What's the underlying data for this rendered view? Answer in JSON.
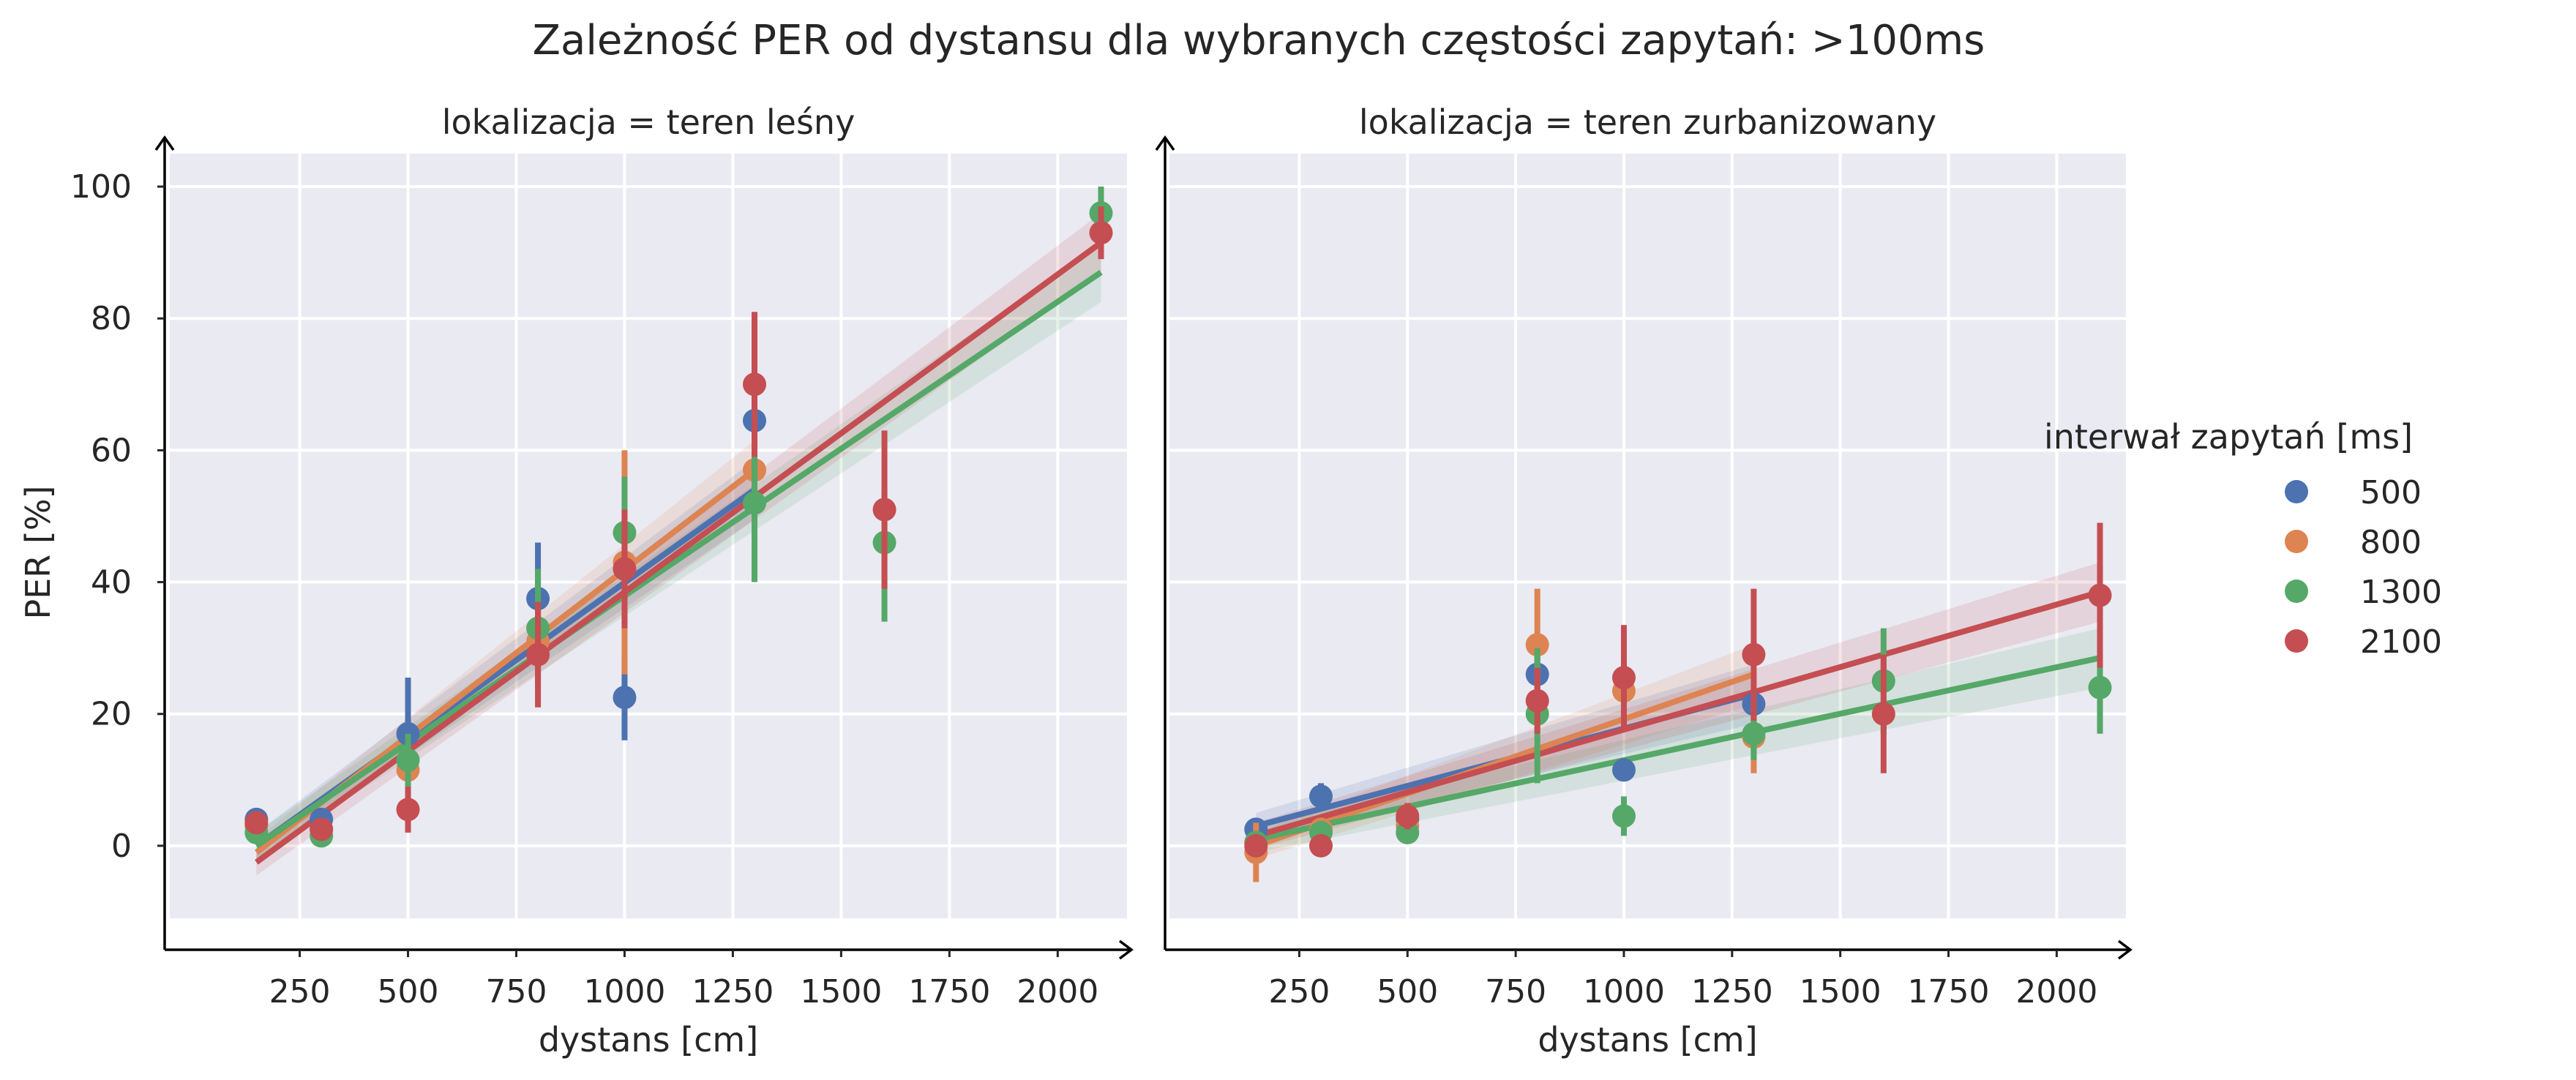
{
  "chart_data": {
    "type": "scatter",
    "title": "Zależność PER od dystansu dla wybranych częstości zapytań: >100ms",
    "xlabel": "dystans [cm]",
    "ylabel": "PER [%]",
    "xlim": [
      -50,
      2160
    ],
    "ylim": [
      -11,
      105
    ],
    "xticks": [
      250,
      500,
      750,
      1000,
      1250,
      1500,
      1750,
      2000
    ],
    "yticks": [
      0,
      20,
      40,
      60,
      80,
      100
    ],
    "grid": true,
    "legend": {
      "title": "interwał zapytań [ms]",
      "placement": "right",
      "entries": [
        "500",
        "800",
        "1300",
        "2100"
      ]
    },
    "colors": {
      "500": "#4c72b0",
      "800": "#dd8452",
      "1300": "#55a868",
      "2100": "#c44e52",
      "background": "#eaeaf2"
    },
    "panels": [
      {
        "title": "lokalizacja = teren leśny",
        "series": [
          {
            "name": "500",
            "points": [
              {
                "x": 150,
                "y": 4,
                "lo": 2.5,
                "hi": 5.5
              },
              {
                "x": 300,
                "y": 4,
                "lo": 3,
                "hi": 5
              },
              {
                "x": 500,
                "y": 17,
                "lo": 9,
                "hi": 25.5
              },
              {
                "x": 800,
                "y": 37.5,
                "lo": 29,
                "hi": 46
              },
              {
                "x": 1000,
                "y": 22.5,
                "lo": 16,
                "hi": 29
              },
              {
                "x": 1300,
                "y": 64.5,
                "lo": 62,
                "hi": 66
              }
            ],
            "fit": {
              "x": [
                150,
                1300
              ],
              "y": [
                0,
                54
              ]
            }
          },
          {
            "name": "800",
            "points": [
              {
                "x": 150,
                "y": 3,
                "lo": 2,
                "hi": 4
              },
              {
                "x": 300,
                "y": 2.5,
                "lo": 1.5,
                "hi": 3.5
              },
              {
                "x": 500,
                "y": 11.5,
                "lo": 8,
                "hi": 15
              },
              {
                "x": 800,
                "y": 31,
                "lo": 25,
                "hi": 37
              },
              {
                "x": 1000,
                "y": 43,
                "lo": 26,
                "hi": 60
              },
              {
                "x": 1300,
                "y": 57,
                "lo": 53,
                "hi": 61
              }
            ],
            "fit": {
              "x": [
                150,
                1300
              ],
              "y": [
                -1,
                57
              ]
            }
          },
          {
            "name": "1300",
            "points": [
              {
                "x": 150,
                "y": 2,
                "lo": 1,
                "hi": 3
              },
              {
                "x": 300,
                "y": 1.5,
                "lo": 0.5,
                "hi": 2.5
              },
              {
                "x": 500,
                "y": 13,
                "lo": 9,
                "hi": 17
              },
              {
                "x": 800,
                "y": 33,
                "lo": 24,
                "hi": 42
              },
              {
                "x": 1000,
                "y": 47.5,
                "lo": 39,
                "hi": 56
              },
              {
                "x": 1300,
                "y": 52,
                "lo": 40,
                "hi": 64
              },
              {
                "x": 1600,
                "y": 46,
                "lo": 34,
                "hi": 54
              },
              {
                "x": 2100,
                "y": 96,
                "lo": 92,
                "hi": 100
              }
            ],
            "fit": {
              "x": [
                150,
                2100
              ],
              "y": [
                0,
                87
              ]
            }
          },
          {
            "name": "2100",
            "points": [
              {
                "x": 150,
                "y": 3.5,
                "lo": 2,
                "hi": 5
              },
              {
                "x": 300,
                "y": 2.5,
                "lo": 1,
                "hi": 4
              },
              {
                "x": 500,
                "y": 5.5,
                "lo": 2,
                "hi": 9
              },
              {
                "x": 800,
                "y": 29,
                "lo": 21,
                "hi": 37
              },
              {
                "x": 1000,
                "y": 42,
                "lo": 33,
                "hi": 51
              },
              {
                "x": 1300,
                "y": 70,
                "lo": 59,
                "hi": 81
              },
              {
                "x": 1600,
                "y": 51,
                "lo": 39,
                "hi": 63
              },
              {
                "x": 2100,
                "y": 93,
                "lo": 89,
                "hi": 97
              }
            ],
            "fit": {
              "x": [
                150,
                2100
              ],
              "y": [
                -2.5,
                91.5
              ]
            }
          }
        ]
      },
      {
        "title": "lokalizacja = teren zurbanizowany",
        "series": [
          {
            "name": "500",
            "points": [
              {
                "x": 150,
                "y": 2.5,
                "lo": 1.5,
                "hi": 3.5
              },
              {
                "x": 300,
                "y": 7.5,
                "lo": 5.5,
                "hi": 9.5
              },
              {
                "x": 500,
                "y": 4,
                "lo": 2.5,
                "hi": 5.5
              },
              {
                "x": 800,
                "y": 26,
                "lo": 22,
                "hi": 30
              },
              {
                "x": 1000,
                "y": 11.5,
                "lo": 10,
                "hi": 13
              },
              {
                "x": 1300,
                "y": 21.5,
                "lo": 19.5,
                "hi": 23.5
              }
            ],
            "fit": {
              "x": [
                150,
                1300
              ],
              "y": [
                3,
                23
              ]
            }
          },
          {
            "name": "800",
            "points": [
              {
                "x": 150,
                "y": -1,
                "lo": -5.5,
                "hi": 3.5
              },
              {
                "x": 300,
                "y": 2.5,
                "lo": 1,
                "hi": 4
              },
              {
                "x": 500,
                "y": 3,
                "lo": 1.5,
                "hi": 4.5
              },
              {
                "x": 800,
                "y": 30.5,
                "lo": 22,
                "hi": 39
              },
              {
                "x": 1000,
                "y": 23.5,
                "lo": 18,
                "hi": 29
              },
              {
                "x": 1300,
                "y": 16.5,
                "lo": 11,
                "hi": 22
              }
            ],
            "fit": {
              "x": [
                150,
                1300
              ],
              "y": [
                0,
                26
              ]
            }
          },
          {
            "name": "1300",
            "points": [
              {
                "x": 150,
                "y": 0.5,
                "lo": -0.5,
                "hi": 1.5
              },
              {
                "x": 300,
                "y": 2,
                "lo": 1,
                "hi": 3
              },
              {
                "x": 500,
                "y": 2,
                "lo": 0.5,
                "hi": 3.5
              },
              {
                "x": 800,
                "y": 20,
                "lo": 9.5,
                "hi": 30
              },
              {
                "x": 1000,
                "y": 4.5,
                "lo": 1.5,
                "hi": 7.5
              },
              {
                "x": 1300,
                "y": 17,
                "lo": 13,
                "hi": 21
              },
              {
                "x": 1600,
                "y": 25,
                "lo": 17,
                "hi": 33
              },
              {
                "x": 2100,
                "y": 24,
                "lo": 17,
                "hi": 31
              }
            ],
            "fit": {
              "x": [
                150,
                2100
              ],
              "y": [
                1,
                28.5
              ]
            }
          },
          {
            "name": "2100",
            "points": [
              {
                "x": 150,
                "y": 0,
                "lo": -1,
                "hi": 1
              },
              {
                "x": 300,
                "y": 0,
                "lo": -1,
                "hi": 1
              },
              {
                "x": 500,
                "y": 4.5,
                "lo": 2.5,
                "hi": 6.5
              },
              {
                "x": 800,
                "y": 22,
                "lo": 17,
                "hi": 27
              },
              {
                "x": 1000,
                "y": 25.5,
                "lo": 17.5,
                "hi": 33.5
              },
              {
                "x": 1300,
                "y": 29,
                "lo": 19,
                "hi": 39
              },
              {
                "x": 1600,
                "y": 20,
                "lo": 11,
                "hi": 29
              },
              {
                "x": 2100,
                "y": 38,
                "lo": 27,
                "hi": 49
              }
            ],
            "fit": {
              "x": [
                150,
                2100
              ],
              "y": [
                1.5,
                38.5
              ]
            }
          }
        ]
      }
    ]
  }
}
